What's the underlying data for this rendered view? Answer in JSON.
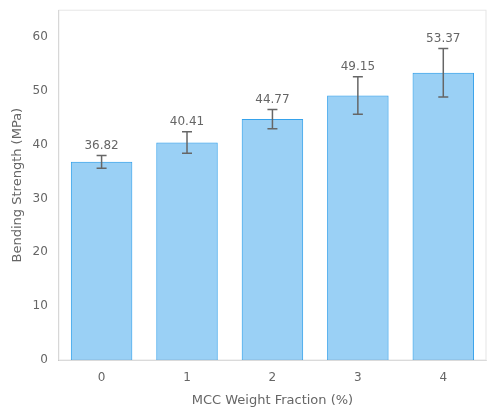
{
  "chart_data": {
    "type": "bar",
    "categories": [
      0,
      1,
      2,
      3,
      4
    ],
    "values": [
      36.82,
      40.41,
      44.77,
      49.15,
      53.37
    ],
    "errors": [
      1.2,
      2.0,
      1.8,
      3.5,
      4.5
    ],
    "xlabel": "MCC Weight Fraction (%)",
    "ylabel": "Bending Strength (MPa)",
    "ylim": [
      0,
      65
    ],
    "yticks": [
      0,
      10,
      20,
      30,
      40,
      50,
      60
    ],
    "grid": false,
    "data_labels": true
  }
}
